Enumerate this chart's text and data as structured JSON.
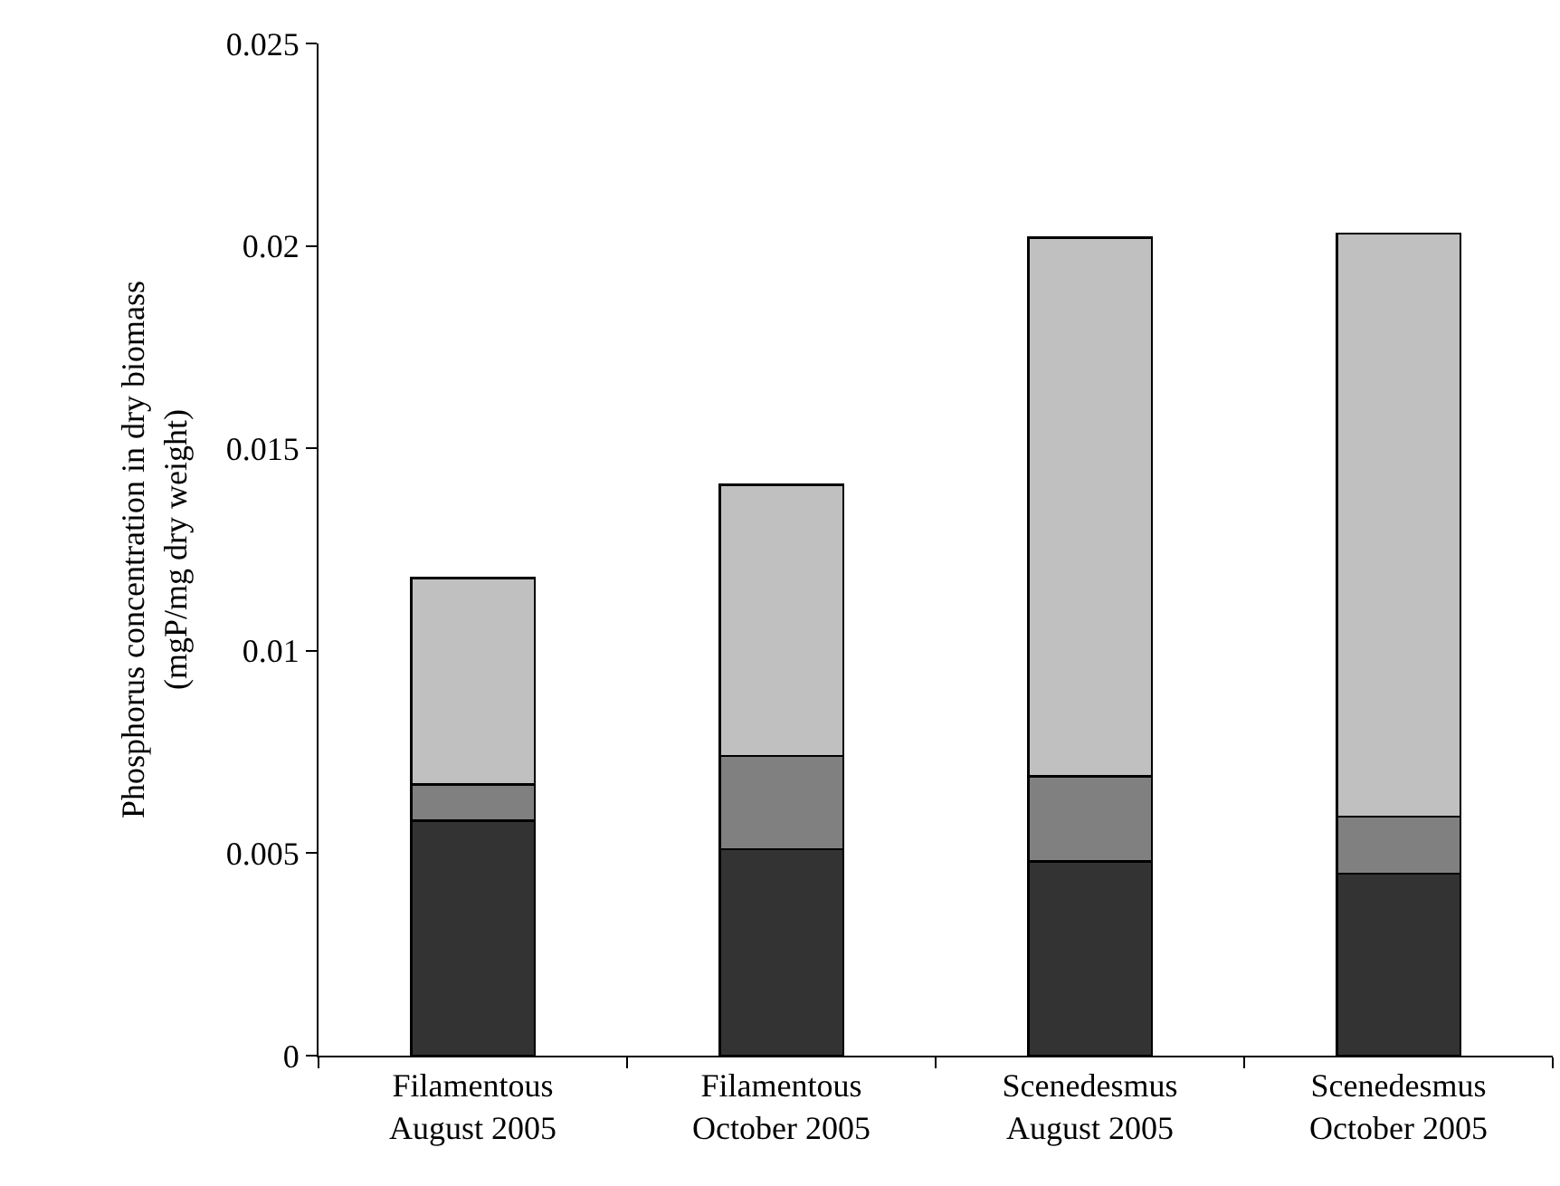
{
  "chart_data": {
    "type": "bar",
    "stacked": true,
    "ylabel": "Phosphorus concentration in dry biomass\n(mgP/mg dry weight)",
    "categories": [
      "Filamentous\nAugust 2005",
      "Filamentous\nOctober 2005",
      "Scenedesmus\nAugust 2005",
      "Scenedesmus\nOctober 2005"
    ],
    "series": [
      {
        "color": "#333333",
        "values": [
          0.0058,
          0.0051,
          0.0048,
          0.0045
        ]
      },
      {
        "color": "#808080",
        "values": [
          0.0009,
          0.0023,
          0.0021,
          0.0014
        ]
      },
      {
        "color": "#c0c0c0",
        "values": [
          0.0051,
          0.0067,
          0.0133,
          0.0144
        ]
      }
    ],
    "ylim": [
      0,
      0.025
    ],
    "yticks": [
      0,
      0.005,
      0.01,
      0.015,
      0.02,
      0.025
    ]
  }
}
